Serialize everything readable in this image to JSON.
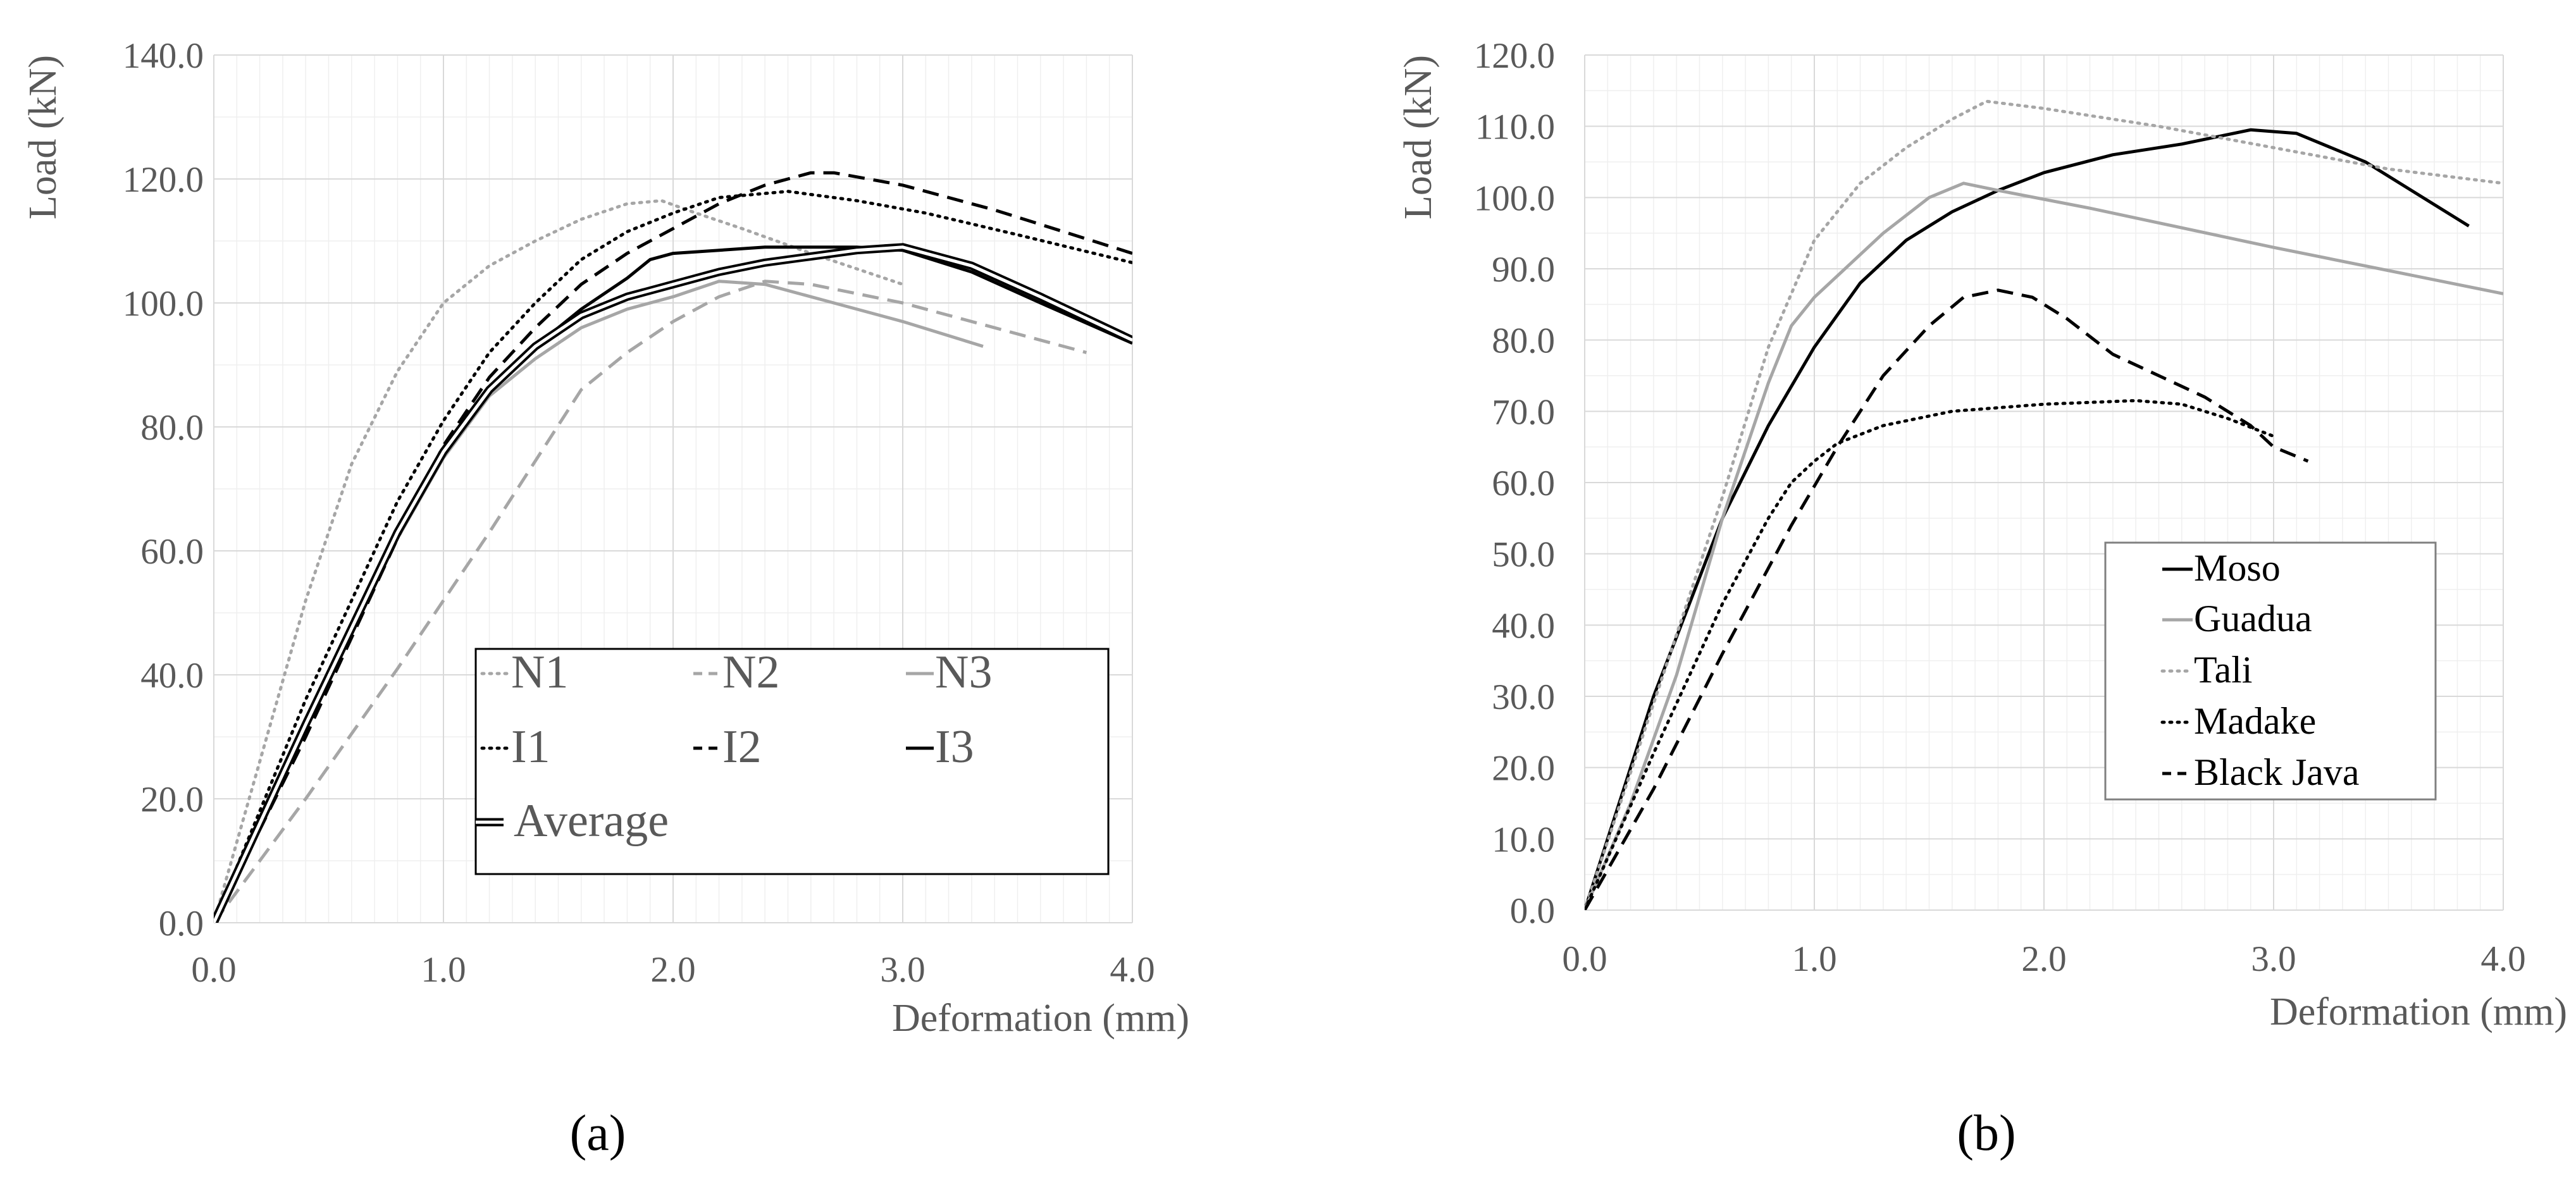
{
  "chart_data": [
    {
      "type": "line",
      "panel_label": "(a)",
      "xlabel": "Deformation (mm)",
      "ylabel": "Load (kN)",
      "xlim": [
        0,
        4
      ],
      "ylim": [
        0,
        140
      ],
      "x_ticks": [
        "0.0",
        "1.0",
        "2.0",
        "3.0",
        "4.0"
      ],
      "y_ticks": [
        "0.0",
        "20.0",
        "40.0",
        "60.0",
        "80.0",
        "100.0",
        "120.0",
        "140.0"
      ],
      "grid": true,
      "legend_position": "bottom-right",
      "series": [
        {
          "name": "N1",
          "color": "#a6a6a6",
          "dash": "dotted",
          "x": [
            0,
            0.2,
            0.4,
            0.6,
            0.8,
            1.0,
            1.2,
            1.4,
            1.6,
            1.8,
            1.95,
            2.1,
            2.3,
            2.6,
            3.0
          ],
          "y": [
            0,
            26,
            52,
            74,
            89,
            100,
            106,
            110,
            113.5,
            116,
            116.5,
            114.5,
            112,
            108,
            103
          ]
        },
        {
          "name": "N2",
          "color": "#a6a6a6",
          "dash": "dashed",
          "x": [
            0,
            0.4,
            0.8,
            1.2,
            1.6,
            1.8,
            2.0,
            2.2,
            2.4,
            2.6,
            3.0,
            3.4,
            3.8
          ],
          "y": [
            0,
            20,
            41,
            63,
            86,
            92,
            97,
            101,
            103.5,
            103,
            100,
            96,
            92
          ]
        },
        {
          "name": "N3",
          "color": "#a6a6a6",
          "dash": "solid",
          "x": [
            0,
            0.4,
            0.8,
            1.0,
            1.2,
            1.4,
            1.6,
            1.8,
            2.0,
            2.2,
            2.4,
            2.7,
            3.0,
            3.35
          ],
          "y": [
            0,
            32,
            62,
            75,
            85,
            91,
            96,
            99,
            101,
            103.5,
            103,
            100,
            97,
            93
          ]
        },
        {
          "name": "I1",
          "color": "#000000",
          "dash": "dotted",
          "x": [
            0,
            0.4,
            0.8,
            1.0,
            1.2,
            1.4,
            1.6,
            1.8,
            2.0,
            2.2,
            2.5,
            2.8,
            3.1,
            3.5,
            4.0
          ],
          "y": [
            0,
            36,
            68,
            81,
            92,
            100,
            107,
            111.5,
            114.5,
            117,
            118,
            116.5,
            114.5,
            111,
            106.5
          ]
        },
        {
          "name": "I2",
          "color": "#000000",
          "dash": "dashed",
          "x": [
            0,
            0.4,
            0.8,
            1.0,
            1.2,
            1.4,
            1.6,
            1.8,
            2.0,
            2.2,
            2.4,
            2.6,
            2.7,
            3.0,
            3.4,
            4.0
          ],
          "y": [
            0,
            30,
            62,
            77,
            88,
            96,
            103,
            108,
            112,
            116,
            119,
            121,
            121,
            119,
            115,
            108
          ]
        },
        {
          "name": "I3",
          "color": "#000000",
          "dash": "solid",
          "x": [
            0,
            0.4,
            0.8,
            1.0,
            1.2,
            1.4,
            1.6,
            1.8,
            1.9,
            2.0,
            2.4,
            2.8,
            3.0,
            3.3,
            3.6,
            4.0
          ],
          "y": [
            0,
            32,
            63,
            76,
            86,
            93,
            99,
            104,
            107,
            108,
            109,
            109,
            108.5,
            105,
            100,
            93.5
          ]
        },
        {
          "name": "Average",
          "color": "#000000",
          "dash": "double",
          "x": [
            0,
            0.4,
            0.8,
            1.0,
            1.2,
            1.4,
            1.6,
            1.8,
            2.0,
            2.2,
            2.4,
            2.6,
            2.8,
            3.0,
            3.3,
            3.6,
            4.0
          ],
          "y": [
            0,
            32,
            63,
            76,
            86,
            93,
            98,
            101,
            103,
            105,
            106.5,
            107.5,
            108.5,
            109,
            106,
            101,
            94
          ]
        }
      ]
    },
    {
      "type": "line",
      "panel_label": "(b)",
      "xlabel": "Deformation (mm)",
      "ylabel": "Load (kN)",
      "xlim": [
        0,
        4
      ],
      "ylim": [
        0,
        120
      ],
      "x_ticks": [
        "0.0",
        "1.0",
        "2.0",
        "3.0",
        "4.0"
      ],
      "y_ticks": [
        "0.0",
        "10.0",
        "20.0",
        "30.0",
        "40.0",
        "50.0",
        "60.0",
        "70.0",
        "80.0",
        "90.0",
        "100.0",
        "110.0",
        "120.0"
      ],
      "grid": true,
      "legend_position": "center-right",
      "series": [
        {
          "name": "Moso",
          "color": "#000000",
          "dash": "solid",
          "x": [
            0,
            0.3,
            0.6,
            0.8,
            1.0,
            1.2,
            1.4,
            1.6,
            1.8,
            2.0,
            2.3,
            2.6,
            2.9,
            3.1,
            3.4,
            3.85
          ],
          "y": [
            0,
            30,
            55,
            68,
            79,
            88,
            94,
            98,
            101,
            103.5,
            106,
            107.5,
            109.5,
            109,
            105,
            96
          ]
        },
        {
          "name": "Guadua",
          "color": "#a6a6a6",
          "dash": "solid",
          "x": [
            0,
            0.2,
            0.4,
            0.6,
            0.8,
            0.9,
            1.0,
            1.1,
            1.3,
            1.5,
            1.65,
            1.8,
            2.2,
            3.0,
            4.0
          ],
          "y": [
            0,
            15,
            33,
            55,
            74,
            82,
            86,
            89,
            95,
            100,
            102,
            101,
            98.5,
            93,
            86.5
          ]
        },
        {
          "name": "Tali",
          "color": "#a6a6a6",
          "dash": "dotted",
          "x": [
            0,
            0.3,
            0.6,
            0.8,
            1.0,
            1.2,
            1.4,
            1.6,
            1.75,
            2.0,
            2.5,
            3.0,
            3.5,
            4.0
          ],
          "y": [
            0,
            29,
            58,
            79,
            94,
            102,
            107,
            111,
            113.5,
            112.5,
            110,
            107,
            104,
            102
          ]
        },
        {
          "name": "Madake",
          "color": "#000000",
          "dash": "dotted",
          "x": [
            0,
            0.3,
            0.6,
            0.8,
            0.9,
            1.0,
            1.1,
            1.3,
            1.6,
            2.0,
            2.4,
            2.6,
            2.8,
            3.0
          ],
          "y": [
            0,
            22,
            43,
            55,
            60,
            63,
            65.5,
            68,
            70,
            71,
            71.5,
            71,
            69,
            66.5
          ]
        },
        {
          "name": "Black Java",
          "color": "#000000",
          "dash": "dashed",
          "x": [
            0,
            0.3,
            0.6,
            0.9,
            1.1,
            1.3,
            1.5,
            1.65,
            1.8,
            1.95,
            2.1,
            2.3,
            2.5,
            2.7,
            2.9,
            3.0,
            3.15
          ],
          "y": [
            0,
            17,
            36,
            54,
            65,
            75,
            82,
            86,
            87,
            86,
            83,
            78,
            75,
            72,
            68,
            65,
            63
          ]
        }
      ]
    }
  ]
}
